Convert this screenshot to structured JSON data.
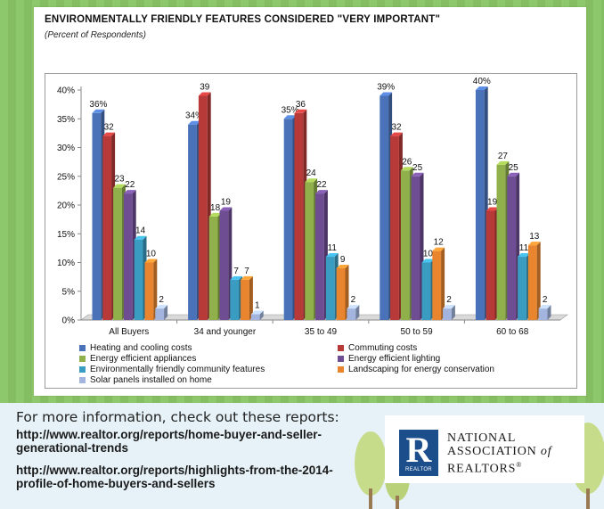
{
  "chart_data": {
    "type": "bar",
    "title": "ENVIRONMENTALLY FRIENDLY FEATURES CONSIDERED \"VERY IMPORTANT\"",
    "subtitle": "(Percent of Respondents)",
    "categories": [
      "All Buyers",
      "34 and younger",
      "35 to 49",
      "50 to 59",
      "60 to 68"
    ],
    "series": [
      {
        "name": "Heating and cooling costs",
        "color": "#4a72b8",
        "values": [
          36,
          34,
          35,
          39,
          40
        ],
        "labels": [
          "36%",
          "34%",
          "35%",
          "39%",
          "40%"
        ]
      },
      {
        "name": "Commuting costs",
        "color": "#b83a38",
        "values": [
          32,
          39,
          36,
          32,
          19
        ],
        "labels": [
          "32",
          "39",
          "36",
          "32",
          "19"
        ]
      },
      {
        "name": "Energy efficient appliances",
        "color": "#8fb04a",
        "values": [
          23,
          18,
          24,
          26,
          27
        ],
        "labels": [
          "23",
          "18",
          "24",
          "26",
          "27"
        ]
      },
      {
        "name": "Energy efficient lighting",
        "color": "#6e4d93",
        "values": [
          22,
          19,
          22,
          25,
          25
        ],
        "labels": [
          "22",
          "19",
          "22",
          "25",
          "25"
        ]
      },
      {
        "name": "Environmentally friendly community features",
        "color": "#3a9cc0",
        "values": [
          14,
          7,
          11,
          10,
          11
        ],
        "labels": [
          "14",
          "7",
          "11",
          "10",
          "11"
        ]
      },
      {
        "name": "Landscaping for energy conservation",
        "color": "#e8852e",
        "values": [
          10,
          7,
          9,
          12,
          13
        ],
        "labels": [
          "10",
          "7",
          "9",
          "12",
          "13"
        ]
      },
      {
        "name": "Solar panels installed on home",
        "color": "#a3b5de",
        "values": [
          2,
          1,
          2,
          2,
          2
        ],
        "labels": [
          "2",
          "1",
          "2",
          "2",
          "2"
        ]
      }
    ],
    "yticks": [
      "0%",
      "5%",
      "10%",
      "15%",
      "20%",
      "25%",
      "30%",
      "35%",
      "40%"
    ],
    "ylim": [
      0,
      40
    ],
    "grid": false,
    "legend": "bottom"
  },
  "info": {
    "heading": "For more information, check out these reports:",
    "link1_line1": "http://www.realtor.org/reports/home-buyer-and-seller-",
    "link1_line2": "generational-trends",
    "link2_line1": "http://www.realtor.org/reports/highlights-from-the-2014-",
    "link2_line2": "profile-of-home-buyers-and-sellers"
  },
  "logo": {
    "line1": "NATIONAL",
    "line2": "ASSOCIATION",
    "line2_suffix": "of",
    "line3": "REALTORS",
    "mark": "R",
    "mark_sub": "REALTOR"
  }
}
